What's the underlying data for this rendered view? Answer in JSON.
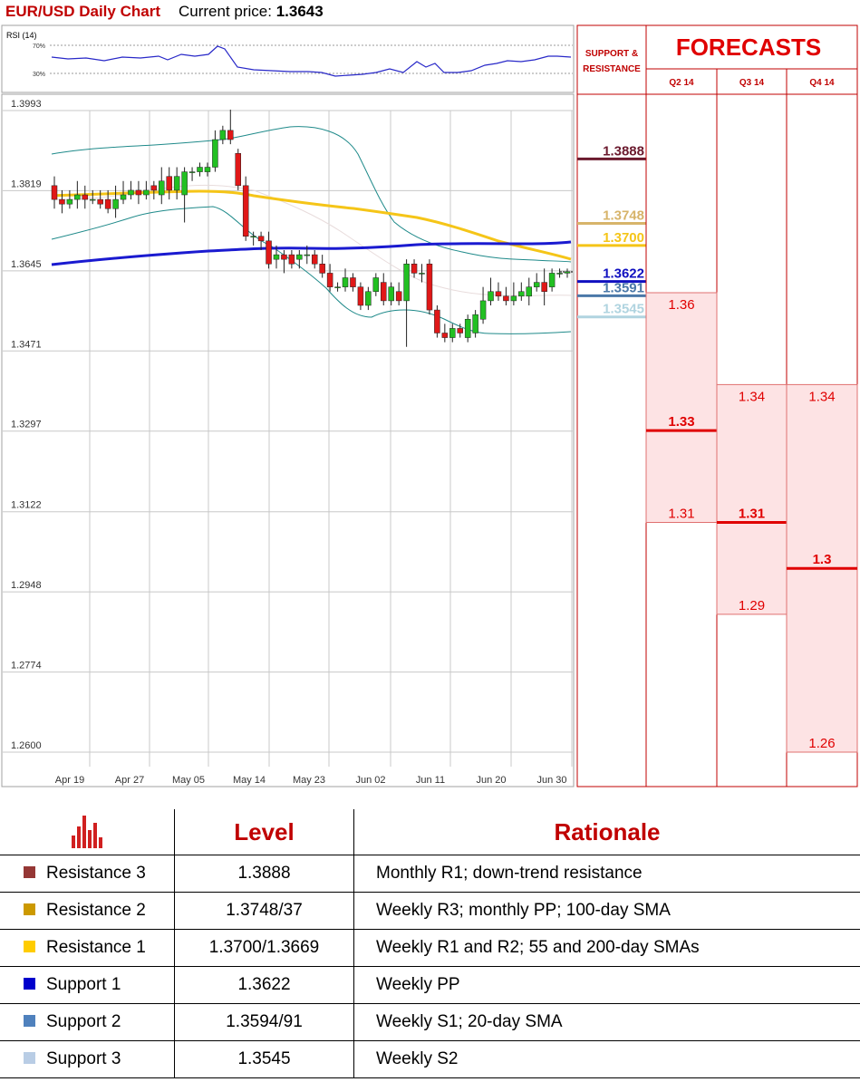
{
  "header": {
    "title": "EUR/USD Daily Chart",
    "price_label": "Current price:",
    "price_value": "1.3643"
  },
  "rsi": {
    "label": "RSI (14)",
    "levels": [
      "70%",
      "30%"
    ]
  },
  "chart_data": [
    {
      "type": "candlestick",
      "title": "EUR/USD Daily Chart",
      "current_price": 1.3643,
      "y_ticks": [
        1.3993,
        1.3819,
        1.3645,
        1.3471,
        1.3297,
        1.3122,
        1.2948,
        1.2774,
        1.26
      ],
      "ylim": [
        1.26,
        1.3993
      ],
      "x_ticks": [
        "Apr 19",
        "Apr 27",
        "May 05",
        "May 14",
        "May 23",
        "Jun 02",
        "Jun 11",
        "Jun 20",
        "Jun 30"
      ],
      "grid": true,
      "candles": [
        [
          1.383,
          1.38,
          1.385,
          1.378
        ],
        [
          1.38,
          1.379,
          1.382,
          1.377
        ],
        [
          1.379,
          1.38,
          1.382,
          1.378
        ],
        [
          1.38,
          1.381,
          1.384,
          1.378
        ],
        [
          1.381,
          1.38,
          1.383,
          1.378
        ],
        [
          1.38,
          1.38,
          1.382,
          1.379
        ],
        [
          1.38,
          1.379,
          1.382,
          1.378
        ],
        [
          1.38,
          1.378,
          1.382,
          1.377
        ],
        [
          1.378,
          1.38,
          1.383,
          1.376
        ],
        [
          1.38,
          1.381,
          1.384,
          1.379
        ],
        [
          1.381,
          1.382,
          1.384,
          1.38
        ],
        [
          1.382,
          1.381,
          1.384,
          1.379
        ],
        [
          1.381,
          1.382,
          1.384,
          1.38
        ],
        [
          1.383,
          1.382,
          1.384,
          1.38
        ],
        [
          1.381,
          1.384,
          1.387,
          1.379
        ],
        [
          1.385,
          1.382,
          1.387,
          1.38
        ],
        [
          1.382,
          1.385,
          1.387,
          1.38
        ],
        [
          1.381,
          1.386,
          1.387,
          1.375
        ],
        [
          1.386,
          1.386,
          1.387,
          1.384
        ],
        [
          1.386,
          1.387,
          1.388,
          1.385
        ],
        [
          1.386,
          1.387,
          1.388,
          1.385
        ],
        [
          1.387,
          1.393,
          1.395,
          1.386
        ],
        [
          1.393,
          1.395,
          1.396,
          1.392
        ],
        [
          1.395,
          1.393,
          1.3995,
          1.392
        ],
        [
          1.39,
          1.383,
          1.391,
          1.382
        ],
        [
          1.383,
          1.372,
          1.385,
          1.371
        ],
        [
          1.372,
          1.372,
          1.373,
          1.37
        ],
        [
          1.372,
          1.371,
          1.373,
          1.369
        ],
        [
          1.371,
          1.366,
          1.373,
          1.365
        ],
        [
          1.367,
          1.368,
          1.37,
          1.365
        ],
        [
          1.368,
          1.367,
          1.369,
          1.364
        ],
        [
          1.368,
          1.366,
          1.369,
          1.365
        ],
        [
          1.367,
          1.368,
          1.369,
          1.365
        ],
        [
          1.368,
          1.368,
          1.37,
          1.366
        ],
        [
          1.368,
          1.366,
          1.369,
          1.365
        ],
        [
          1.366,
          1.364,
          1.368,
          1.363
        ],
        [
          1.364,
          1.361,
          1.366,
          1.36
        ],
        [
          1.361,
          1.361,
          1.362,
          1.36
        ],
        [
          1.361,
          1.363,
          1.365,
          1.36
        ],
        [
          1.363,
          1.361,
          1.364,
          1.36
        ],
        [
          1.361,
          1.357,
          1.362,
          1.356
        ],
        [
          1.357,
          1.36,
          1.361,
          1.356
        ],
        [
          1.36,
          1.363,
          1.364,
          1.359
        ],
        [
          1.362,
          1.358,
          1.364,
          1.357
        ],
        [
          1.358,
          1.361,
          1.362,
          1.357
        ],
        [
          1.36,
          1.358,
          1.362,
          1.357
        ],
        [
          1.358,
          1.366,
          1.367,
          1.348
        ],
        [
          1.366,
          1.364,
          1.367,
          1.363
        ],
        [
          1.364,
          1.364,
          1.366,
          1.362
        ],
        [
          1.366,
          1.356,
          1.367,
          1.355
        ],
        [
          1.356,
          1.351,
          1.357,
          1.35
        ],
        [
          1.351,
          1.35,
          1.353,
          1.349
        ],
        [
          1.35,
          1.352,
          1.353,
          1.349
        ],
        [
          1.352,
          1.351,
          1.353,
          1.35
        ],
        [
          1.35,
          1.354,
          1.355,
          1.349
        ],
        [
          1.351,
          1.355,
          1.356,
          1.35
        ],
        [
          1.354,
          1.358,
          1.361,
          1.353
        ],
        [
          1.358,
          1.36,
          1.363,
          1.357
        ],
        [
          1.36,
          1.359,
          1.362,
          1.358
        ],
        [
          1.359,
          1.358,
          1.361,
          1.357
        ],
        [
          1.358,
          1.359,
          1.362,
          1.357
        ],
        [
          1.359,
          1.36,
          1.362,
          1.358
        ],
        [
          1.359,
          1.361,
          1.363,
          1.357
        ],
        [
          1.361,
          1.362,
          1.364,
          1.36
        ],
        [
          1.362,
          1.36,
          1.365,
          1.357
        ],
        [
          1.361,
          1.364,
          1.365,
          1.36
        ],
        [
          1.364,
          1.364,
          1.365,
          1.363
        ],
        [
          1.364,
          1.3643,
          1.365,
          1.363
        ]
      ]
    },
    {
      "type": "level_chart",
      "title": "SUPPORT & RESISTANCE",
      "levels": [
        {
          "name": "Resistance 3",
          "label": "1.3888",
          "value": 1.3888,
          "color": "#6b1a2e"
        },
        {
          "name": "Resistance 2",
          "label": "1.3748",
          "value": 1.3748,
          "color": "#d7b46a"
        },
        {
          "name": "Resistance 1",
          "label": "1.3700",
          "value": 1.37,
          "color": "#f5c518"
        },
        {
          "name": "Support 1",
          "label": "1.3622",
          "value": 1.3622,
          "color": "#1010c0"
        },
        {
          "name": "Support 2",
          "label": "1.3591",
          "value": 1.3591,
          "color": "#4a78a8"
        },
        {
          "name": "Support 3",
          "label": "1.3545",
          "value": 1.3545,
          "color": "#b0d4e0"
        }
      ]
    },
    {
      "type": "range",
      "title": "FORECASTS",
      "categories": [
        "Q2 14",
        "Q3 14",
        "Q4 14"
      ],
      "high": [
        1.36,
        1.34,
        1.34
      ],
      "mid": [
        1.33,
        1.31,
        1.3
      ],
      "low": [
        1.31,
        1.29,
        1.26
      ],
      "labels": {
        "high": [
          "1.36",
          "1.34",
          "1.34"
        ],
        "mid": [
          "1.33",
          "1.31",
          "1.3"
        ],
        "low": [
          "1.31",
          "1.29",
          "1.26"
        ]
      }
    }
  ],
  "table": {
    "headers": {
      "level": "Level",
      "rationale": "Rationale"
    },
    "rows": [
      {
        "name": "Resistance 3",
        "level": "1.3888",
        "rationale": "Monthly R1; down-trend resistance",
        "color": "#953735"
      },
      {
        "name": "Resistance 2",
        "level": "1.3748/37",
        "rationale": "Weekly R3; monthly PP; 100-day SMA",
        "color": "#cc9900"
      },
      {
        "name": "Resistance 1",
        "level": "1.3700/1.3669",
        "rationale": "Weekly R1 and R2; 55 and 200-day SMAs",
        "color": "#ffcc00"
      },
      {
        "name": "Support 1",
        "level": "1.3622",
        "rationale": "Weekly PP",
        "color": "#0000cc"
      },
      {
        "name": "Support 2",
        "level": "1.3594/91",
        "rationale": "Weekly S1; 20-day SMA",
        "color": "#4f81bd"
      },
      {
        "name": "Support 3",
        "level": "1.3545",
        "rationale": "Weekly S2",
        "color": "#b9cde5"
      }
    ]
  }
}
